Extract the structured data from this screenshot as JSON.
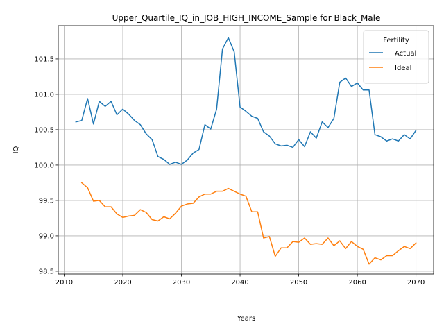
{
  "chart_data": {
    "type": "line",
    "title": "Upper_Quartile_IQ_in_JOB_HIGH_INCOME_Sample for Black_Male",
    "xlabel": "Years",
    "ylabel": "IQ",
    "xlim": [
      2009,
      2073
    ],
    "ylim": [
      98.46,
      101.97
    ],
    "xticks": [
      2010,
      2020,
      2030,
      2040,
      2050,
      2060,
      2070
    ],
    "yticks": [
      98.5,
      99.0,
      99.5,
      100.0,
      100.5,
      101.0,
      101.5
    ],
    "grid": true,
    "legend": {
      "title": "Fertility",
      "placement": "top-right"
    },
    "series": [
      {
        "name": "Actual",
        "color": "#1f77b4",
        "x": [
          2012,
          2013,
          2014,
          2015,
          2016,
          2017,
          2018,
          2019,
          2020,
          2021,
          2022,
          2023,
          2024,
          2025,
          2026,
          2027,
          2028,
          2029,
          2030,
          2031,
          2032,
          2033,
          2034,
          2035,
          2036,
          2037,
          2038,
          2039,
          2040,
          2041,
          2042,
          2043,
          2044,
          2045,
          2046,
          2047,
          2048,
          2049,
          2050,
          2051,
          2052,
          2053,
          2054,
          2055,
          2056,
          2057,
          2058,
          2059,
          2060,
          2061,
          2062,
          2063,
          2064,
          2065,
          2066,
          2067,
          2068,
          2069,
          2070
        ],
        "values": [
          100.61,
          100.63,
          100.94,
          100.58,
          100.9,
          100.83,
          100.9,
          100.71,
          100.79,
          100.72,
          100.63,
          100.57,
          100.44,
          100.36,
          100.12,
          100.08,
          100.01,
          100.04,
          100.01,
          100.07,
          100.17,
          100.22,
          100.57,
          100.51,
          100.79,
          101.64,
          101.8,
          101.6,
          100.82,
          100.76,
          100.69,
          100.66,
          100.47,
          100.41,
          100.3,
          100.27,
          100.28,
          100.25,
          100.36,
          100.26,
          100.47,
          100.38,
          100.61,
          100.53,
          100.66,
          101.17,
          101.23,
          101.11,
          101.16,
          101.06,
          101.06,
          100.43,
          100.4,
          100.34,
          100.37,
          100.34,
          100.43,
          100.37,
          100.49
        ]
      },
      {
        "name": "Ideal",
        "color": "#ff7f0e",
        "x": [
          2013,
          2014,
          2015,
          2016,
          2017,
          2018,
          2019,
          2020,
          2021,
          2022,
          2023,
          2024,
          2025,
          2026,
          2027,
          2028,
          2029,
          2030,
          2031,
          2032,
          2033,
          2034,
          2035,
          2036,
          2037,
          2038,
          2039,
          2040,
          2041,
          2042,
          2043,
          2044,
          2045,
          2046,
          2047,
          2048,
          2049,
          2050,
          2051,
          2052,
          2053,
          2054,
          2055,
          2056,
          2057,
          2058,
          2059,
          2060,
          2061,
          2062,
          2063,
          2064,
          2065,
          2066,
          2067,
          2068,
          2069,
          2070
        ],
        "values": [
          99.75,
          99.68,
          99.49,
          99.5,
          99.41,
          99.41,
          99.31,
          99.26,
          99.28,
          99.29,
          99.37,
          99.33,
          99.23,
          99.21,
          99.27,
          99.24,
          99.32,
          99.42,
          99.45,
          99.46,
          99.55,
          99.59,
          99.59,
          99.63,
          99.63,
          99.67,
          99.63,
          99.59,
          99.56,
          99.34,
          99.34,
          98.97,
          98.99,
          98.71,
          98.83,
          98.83,
          98.92,
          98.91,
          98.97,
          98.88,
          98.89,
          98.88,
          98.97,
          98.86,
          98.93,
          98.82,
          98.92,
          98.85,
          98.81,
          98.6,
          98.69,
          98.66,
          98.72,
          98.72,
          98.79,
          98.85,
          98.82,
          98.9
        ]
      }
    ]
  }
}
